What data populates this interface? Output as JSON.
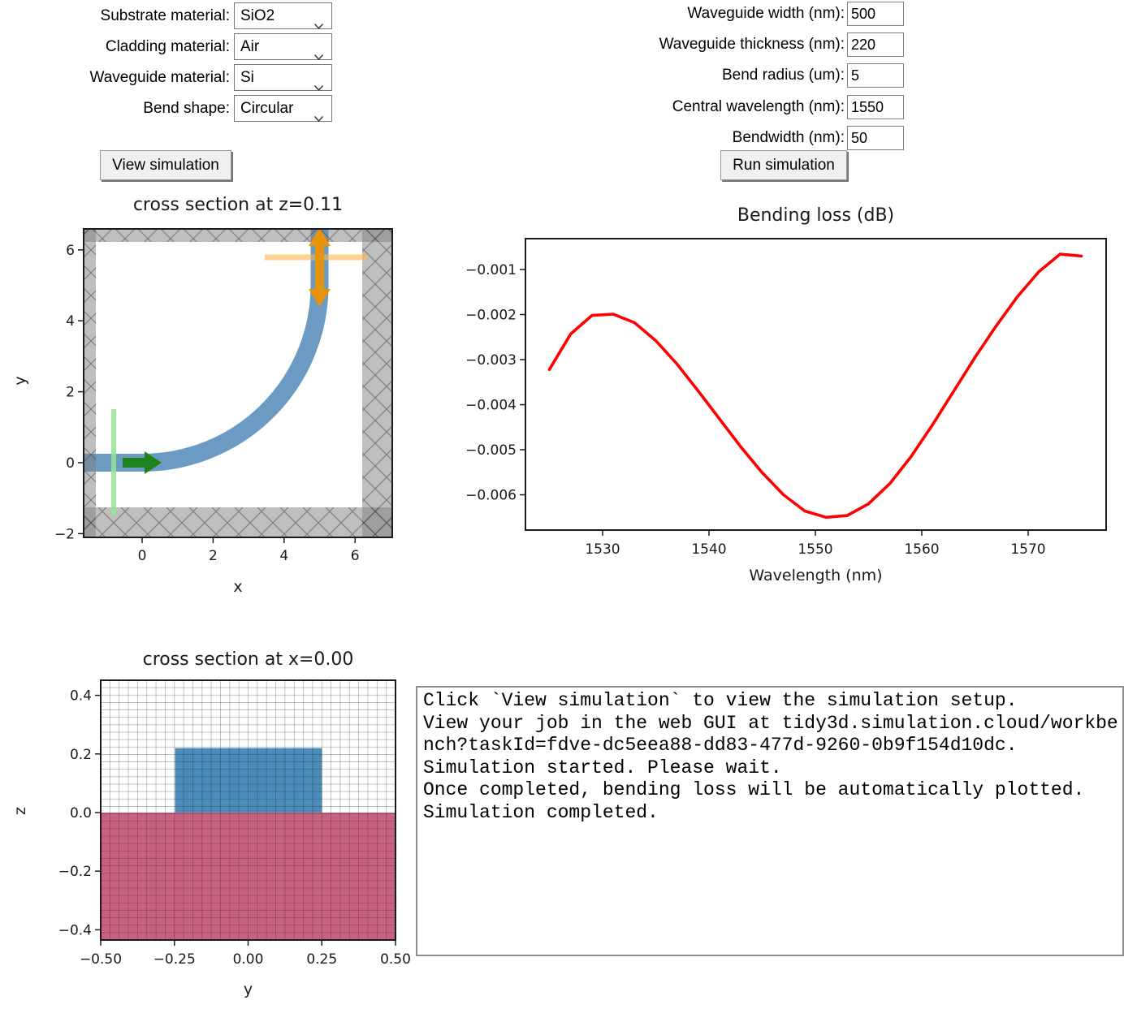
{
  "form": {
    "left": {
      "rows": [
        {
          "label": "Substrate material:",
          "value": "SiO2"
        },
        {
          "label": "Cladding material:",
          "value": "Air"
        },
        {
          "label": "Waveguide material:",
          "value": "Si"
        },
        {
          "label": "Bend shape:",
          "value": "Circular"
        }
      ],
      "button": "View simulation"
    },
    "right": {
      "rows": [
        {
          "label": "Waveguide width (nm):",
          "value": "500"
        },
        {
          "label": "Waveguide thickness (nm):",
          "value": "220"
        },
        {
          "label": "Bend radius (um):",
          "value": "5"
        },
        {
          "label": "Central wavelength (nm):",
          "value": "1550"
        },
        {
          "label": "Bendwidth (nm):",
          "value": "50"
        }
      ],
      "button": "Run simulation"
    }
  },
  "plots": {
    "bend_top": {
      "title": "cross section at z=0.11",
      "xlabel": "x",
      "ylabel": "y",
      "xticks": [
        0,
        2,
        4,
        6
      ],
      "yticks": [
        6,
        4,
        2,
        0,
        -2
      ]
    },
    "cross_section": {
      "title": "cross section at x=0.00",
      "xlabel": "y",
      "ylabel": "z",
      "xticks": [
        {
          "v": -0.5,
          "label": "−0.50"
        },
        {
          "v": -0.25,
          "label": "−0.25"
        },
        {
          "v": 0.0,
          "label": "0.00"
        },
        {
          "v": 0.25,
          "label": "0.25"
        },
        {
          "v": 0.5,
          "label": "0.50"
        }
      ],
      "yticks": [
        {
          "v": 0.4,
          "label": "0.4"
        },
        {
          "v": 0.2,
          "label": "0.2"
        },
        {
          "v": 0.0,
          "label": "0.0"
        },
        {
          "v": -0.2,
          "label": "−0.2"
        },
        {
          "v": -0.4,
          "label": "−0.4"
        }
      ]
    }
  },
  "chart_data": {
    "type": "line",
    "title": "Bending loss (dB)",
    "xlabel": "Wavelength (nm)",
    "ylabel": "",
    "xlim": [
      1522.75,
      1577.33
    ],
    "ylim": [
      -0.006783,
      -0.000315
    ],
    "xticks": [
      1530,
      1540,
      1550,
      1560,
      1570
    ],
    "yticks": [
      -0.001,
      -0.002,
      -0.003,
      -0.004,
      -0.005,
      -0.006
    ],
    "grid": false,
    "legend_position": "none",
    "series": [
      {
        "name": "bending loss",
        "color": "#ff0000",
        "x": [
          1525,
          1527,
          1529,
          1531,
          1533,
          1535,
          1537,
          1539,
          1541,
          1543,
          1545,
          1547,
          1549,
          1551,
          1553,
          1555,
          1557,
          1559,
          1561,
          1563,
          1565,
          1567,
          1569,
          1571,
          1573,
          1575
        ],
        "y": [
          -0.00322,
          -0.00243,
          -0.00202,
          -0.00199,
          -0.00218,
          -0.00258,
          -0.0031,
          -0.0037,
          -0.00432,
          -0.00494,
          -0.00551,
          -0.006,
          -0.00636,
          -0.0065,
          -0.00646,
          -0.0062,
          -0.00575,
          -0.00515,
          -0.00445,
          -0.0037,
          -0.00295,
          -0.00225,
          -0.0016,
          -0.00105,
          -0.00066,
          -0.0007
        ]
      }
    ]
  },
  "console": {
    "lines": [
      "Click `View simulation` to view the simulation setup.",
      "View your job in the web GUI at tidy3d.simulation.cloud/workbe",
      "nch?taskId=fdve-dc5eea88-dd83-477d-9260-0b9f154d10dc.",
      "Simulation started. Please wait.",
      "Once completed, bending loss will be automatically plotted.",
      "Simulation completed."
    ]
  },
  "colors": {
    "curve_red": "#ff0000",
    "waveguide_blue": "#4b8cba",
    "substrate_pink": "#c7617f",
    "source_green": "#1d841d",
    "monitor_orange": "#e7930b",
    "pml_gray": "#808080"
  }
}
